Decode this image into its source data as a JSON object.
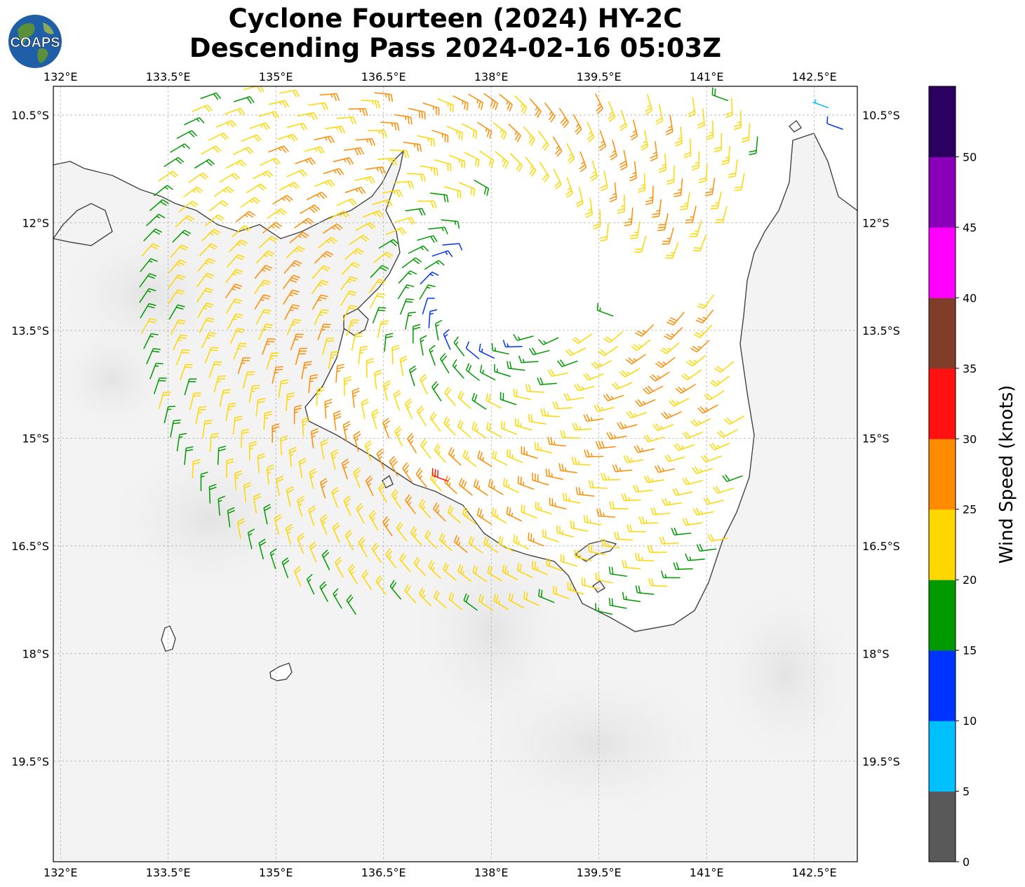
{
  "title": {
    "line1": "Cyclone Fourteen (2024) HY-2C",
    "line2": "Descending Pass 2024-02-16 05:03Z"
  },
  "logo": {
    "text": "COAPS",
    "icon": "globe-logo"
  },
  "map": {
    "lon_range": [
      131.9,
      143.1
    ],
    "lat_range": [
      -20.9,
      -10.1
    ],
    "lon_ticks": [
      "132°E",
      "133.5°E",
      "135°E",
      "136.5°E",
      "138°E",
      "139.5°E",
      "141°E",
      "142.5°E"
    ],
    "lat_ticks": [
      "10.5°S",
      "12°S",
      "13.5°S",
      "15°S",
      "16.5°S",
      "18°S",
      "19.5°S"
    ],
    "gridlines": true,
    "land_color": "#f2f2f2",
    "coast_color": "#444444"
  },
  "colorbar": {
    "label": "Wind Speed (knots)",
    "ticks": [
      "0",
      "5",
      "10",
      "15",
      "20",
      "25",
      "30",
      "35",
      "40",
      "45",
      "50"
    ],
    "colors": [
      "#595959",
      "#00bfff",
      "#0033ff",
      "#009900",
      "#ffd700",
      "#ff8c00",
      "#ff1111",
      "#803d2a",
      "#ff00ff",
      "#8a00b8",
      "#2c0060"
    ]
  },
  "chart_data": {
    "type": "wind_barbs",
    "units": "knots",
    "center": [
      137.9,
      -13.0
    ],
    "rings": [
      {
        "r": 0.9,
        "a": [
          130,
          320
        ],
        "kt": 14
      },
      {
        "r": 1.2,
        "a": [
          120,
          330
        ],
        "kt": 17
      },
      {
        "r": 1.6,
        "a": [
          95,
          340
        ],
        "kt": 20
      },
      {
        "r": 2.0,
        "a": [
          30,
          345
        ],
        "kt": 22
      },
      {
        "r": 2.4,
        "a": [
          20,
          350
        ],
        "kt": 24
      },
      {
        "r": 2.8,
        "a": [
          15,
          355
        ],
        "kt": 26
      },
      {
        "r": 3.2,
        "a": [
          15,
          360
        ],
        "kt": 24
      },
      {
        "r": 3.6,
        "a": [
          20,
          345
        ],
        "kt": 23
      },
      {
        "r": 4.0,
        "a": [
          25,
          335
        ],
        "kt": 22
      },
      {
        "r": 4.4,
        "a": [
          30,
          325
        ],
        "kt": 21
      },
      {
        "r": 4.8,
        "a": [
          40,
          315
        ],
        "kt": 18
      }
    ],
    "extra_barbs": [
      {
        "lon": 142.8,
        "lat": -10.1,
        "kt": 7
      },
      {
        "lon": 142.7,
        "lat": -10.4,
        "kt": 7
      },
      {
        "lon": 142.9,
        "lat": -10.7,
        "kt": 12
      },
      {
        "lon": 137.4,
        "lat": -15.6,
        "kt": 32
      },
      {
        "lon": 139.7,
        "lat": -13.3,
        "kt": 17
      },
      {
        "lon": 141.3,
        "lat": -10.3,
        "kt": 18
      }
    ]
  }
}
